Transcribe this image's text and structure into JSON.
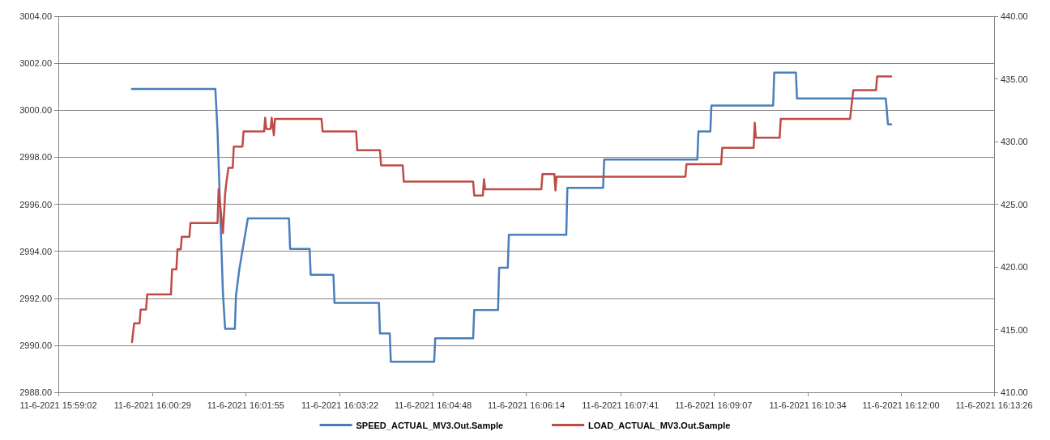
{
  "chart_data": {
    "type": "line",
    "xlim": [
      "2021-06-11T15:59:02",
      "2021-06-11T16:13:26"
    ],
    "xticks": [
      {
        "value": "2021-06-11T15:59:02",
        "label": "11-6-2021 15:59:02"
      },
      {
        "value": "2021-06-11T16:00:29",
        "label": "11-6-2021 16:00:29"
      },
      {
        "value": "2021-06-11T16:01:55",
        "label": "11-6-2021 16:01:55"
      },
      {
        "value": "2021-06-11T16:03:22",
        "label": "11-6-2021 16:03:22"
      },
      {
        "value": "2021-06-11T16:04:48",
        "label": "11-6-2021 16:04:48"
      },
      {
        "value": "2021-06-11T16:06:14",
        "label": "11-6-2021 16:06:14"
      },
      {
        "value": "2021-06-11T16:07:41",
        "label": "11-6-2021 16:07:41"
      },
      {
        "value": "2021-06-11T16:09:07",
        "label": "11-6-2021 16:09:07"
      },
      {
        "value": "2021-06-11T16:10:34",
        "label": "11-6-2021 16:10:34"
      },
      {
        "value": "2021-06-11T16:12:00",
        "label": "11-6-2021 16:12:00"
      },
      {
        "value": "2021-06-11T16:13:26",
        "label": "11-6-2021 16:13:26"
      }
    ],
    "ylim": [
      2988,
      3004
    ],
    "yticks": [
      {
        "value": 2988,
        "label": "2988.00"
      },
      {
        "value": 2990,
        "label": "2990.00"
      },
      {
        "value": 2992,
        "label": "2992.00"
      },
      {
        "value": 2994,
        "label": "2994.00"
      },
      {
        "value": 2996,
        "label": "2996.00"
      },
      {
        "value": 2998,
        "label": "2998.00"
      },
      {
        "value": 3000,
        "label": "3000.00"
      },
      {
        "value": 3002,
        "label": "3002.00"
      },
      {
        "value": 3004,
        "label": "3004.00"
      }
    ],
    "y2lim": [
      410,
      440
    ],
    "y2ticks": [
      {
        "value": 410,
        "label": "410.00"
      },
      {
        "value": 415,
        "label": "415.00"
      },
      {
        "value": 420,
        "label": "420.00"
      },
      {
        "value": 425,
        "label": "425.00"
      },
      {
        "value": 430,
        "label": "430.00"
      },
      {
        "value": 435,
        "label": "435.00"
      },
      {
        "value": 440,
        "label": "440.00"
      }
    ],
    "grid": "y",
    "legend": "bottom",
    "marker": "none",
    "line_style": "solid",
    "series": [
      {
        "name": "SPEED_ACTUAL_MV3.Out.Sample",
        "color": "#4a7ebb",
        "x": [
          "2021-06-11T16:00:10",
          "2021-06-11T16:01:27",
          "2021-06-11T16:01:29",
          "2021-06-11T16:01:34",
          "2021-06-11T16:01:36",
          "2021-06-11T16:01:45",
          "2021-06-11T16:01:46",
          "2021-06-11T16:01:49",
          "2021-06-11T16:01:53",
          "2021-06-11T16:01:57",
          "2021-06-11T16:02:35",
          "2021-06-11T16:02:36",
          "2021-06-11T16:02:54",
          "2021-06-11T16:02:55",
          "2021-06-11T16:03:16",
          "2021-06-11T16:03:17",
          "2021-06-11T16:03:58",
          "2021-06-11T16:03:59",
          "2021-06-11T16:04:08",
          "2021-06-11T16:04:09",
          "2021-06-11T16:04:49",
          "2021-06-11T16:04:50",
          "2021-06-11T16:05:25",
          "2021-06-11T16:05:26",
          "2021-06-11T16:05:48",
          "2021-06-11T16:05:49",
          "2021-06-11T16:05:57",
          "2021-06-11T16:05:58",
          "2021-06-11T16:06:51",
          "2021-06-11T16:06:52",
          "2021-06-11T16:07:25",
          "2021-06-11T16:07:26",
          "2021-06-11T16:08:52",
          "2021-06-11T16:08:53",
          "2021-06-11T16:09:04",
          "2021-06-11T16:09:05",
          "2021-06-11T16:10:02",
          "2021-06-11T16:10:03",
          "2021-06-11T16:10:23",
          "2021-06-11T16:10:24",
          "2021-06-11T16:11:46",
          "2021-06-11T16:11:48",
          "2021-06-11T16:11:51"
        ],
        "values": [
          3000.9,
          3000.9,
          2999.1,
          2992.2,
          2990.7,
          2990.7,
          2992.1,
          2993.2,
          2994.3,
          2995.4,
          2995.4,
          2994.1,
          2994.1,
          2993.0,
          2993.0,
          2991.8,
          2991.8,
          2990.5,
          2990.5,
          2989.3,
          2989.3,
          2990.3,
          2990.3,
          2991.5,
          2991.5,
          2993.3,
          2993.3,
          2994.7,
          2994.7,
          2996.7,
          2996.7,
          2997.9,
          2997.9,
          2999.1,
          2999.1,
          3000.2,
          3000.2,
          3001.6,
          3001.6,
          3000.5,
          3000.5,
          2999.4,
          2999.4
        ]
      },
      {
        "name": "LOAD_ACTUAL_MV3.Out.Sample",
        "color": "#be4b48",
        "axis": "y2",
        "x": [
          "2021-06-11T16:00:10",
          "2021-06-11T16:00:12",
          "2021-06-11T16:00:17",
          "2021-06-11T16:00:18",
          "2021-06-11T16:00:23",
          "2021-06-11T16:00:24",
          "2021-06-11T16:00:46",
          "2021-06-11T16:00:47",
          "2021-06-11T16:00:51",
          "2021-06-11T16:00:52",
          "2021-06-11T16:00:55",
          "2021-06-11T16:00:56",
          "2021-06-11T16:01:03",
          "2021-06-11T16:01:04",
          "2021-06-11T16:01:29",
          "2021-06-11T16:01:30",
          "2021-06-11T16:01:34",
          "2021-06-11T16:01:36",
          "2021-06-11T16:01:37",
          "2021-06-11T16:01:39",
          "2021-06-11T16:01:43",
          "2021-06-11T16:01:44",
          "2021-06-11T16:01:52",
          "2021-06-11T16:01:53",
          "2021-06-11T16:02:12",
          "2021-06-11T16:02:13",
          "2021-06-11T16:02:14",
          "2021-06-11T16:02:18",
          "2021-06-11T16:02:19",
          "2021-06-11T16:02:21",
          "2021-06-11T16:02:22",
          "2021-06-11T16:03:05",
          "2021-06-11T16:03:06",
          "2021-06-11T16:03:37",
          "2021-06-11T16:03:38",
          "2021-06-11T16:03:59",
          "2021-06-11T16:04:00",
          "2021-06-11T16:04:20",
          "2021-06-11T16:04:21",
          "2021-06-11T16:05:25",
          "2021-06-11T16:05:26",
          "2021-06-11T16:05:34",
          "2021-06-11T16:05:35",
          "2021-06-11T16:05:36",
          "2021-06-11T16:06:28",
          "2021-06-11T16:06:29",
          "2021-06-11T16:06:40",
          "2021-06-11T16:06:41",
          "2021-06-11T16:06:42",
          "2021-06-11T16:08:41",
          "2021-06-11T16:08:42",
          "2021-06-11T16:09:14",
          "2021-06-11T16:09:15",
          "2021-06-11T16:09:44",
          "2021-06-11T16:09:45",
          "2021-06-11T16:09:46",
          "2021-06-11T16:10:08",
          "2021-06-11T16:10:09",
          "2021-06-11T16:11:13",
          "2021-06-11T16:11:16",
          "2021-06-11T16:11:37",
          "2021-06-11T16:11:38",
          "2021-06-11T16:11:51"
        ],
        "values": [
          414.0,
          415.5,
          415.5,
          416.6,
          416.6,
          417.8,
          417.8,
          419.8,
          419.8,
          421.4,
          421.4,
          422.4,
          422.4,
          423.5,
          423.5,
          426.2,
          422.7,
          425.8,
          426.6,
          427.9,
          427.9,
          429.6,
          429.6,
          430.8,
          430.8,
          431.9,
          431.0,
          431.0,
          431.9,
          430.5,
          431.8,
          431.8,
          430.8,
          430.8,
          429.3,
          429.3,
          428.1,
          428.1,
          426.8,
          426.8,
          425.7,
          425.7,
          427.0,
          426.2,
          426.2,
          427.4,
          427.4,
          426.1,
          427.2,
          427.2,
          428.2,
          428.2,
          429.5,
          429.5,
          431.5,
          430.3,
          430.3,
          431.8,
          431.8,
          434.1,
          434.1,
          435.2,
          435.2
        ]
      }
    ]
  }
}
